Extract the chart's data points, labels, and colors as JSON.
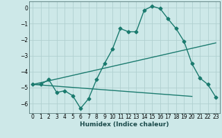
{
  "xlabel": "Humidex (Indice chaleur)",
  "background_color": "#cde8e8",
  "grid_color": "#b0d0d0",
  "line_color": "#1a7a6e",
  "xlim": [
    -0.5,
    23.5
  ],
  "ylim": [
    -6.6,
    0.4
  ],
  "yticks": [
    0,
    -1,
    -2,
    -3,
    -4,
    -5,
    -6
  ],
  "xticks": [
    0,
    1,
    2,
    3,
    4,
    5,
    6,
    7,
    8,
    9,
    10,
    11,
    12,
    13,
    14,
    15,
    16,
    17,
    18,
    19,
    20,
    21,
    22,
    23
  ],
  "series1_x": [
    0,
    1,
    2,
    3,
    4,
    5,
    6,
    7,
    8,
    9,
    10,
    11,
    12,
    13,
    14,
    15,
    16,
    17,
    18,
    19,
    20,
    21,
    22,
    23
  ],
  "series1_y": [
    -4.8,
    -4.8,
    -4.5,
    -5.3,
    -5.2,
    -5.5,
    -6.3,
    -5.7,
    -4.5,
    -3.5,
    -2.6,
    -1.3,
    -1.5,
    -1.5,
    -0.15,
    0.1,
    -0.05,
    -0.7,
    -1.3,
    -2.1,
    -3.5,
    -4.4,
    -4.8,
    -5.6
  ],
  "series2_x": [
    0,
    23
  ],
  "series2_y": [
    -4.8,
    -2.2
  ],
  "series3_x": [
    0,
    20
  ],
  "series3_y": [
    -4.8,
    -5.55
  ],
  "marker_size": 2.5,
  "linewidth": 1.0
}
